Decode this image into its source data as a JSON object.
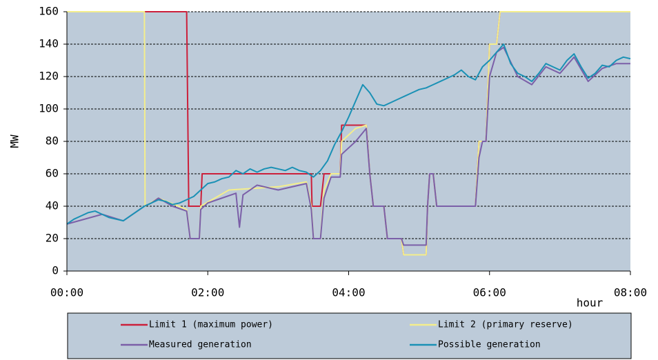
{
  "chart_data": {
    "type": "line",
    "xlabel": "hour",
    "ylabel": "MW",
    "xlim": [
      0,
      8
    ],
    "xticks": [
      {
        "value": 0,
        "label": "00:00"
      },
      {
        "value": 2,
        "label": "02:00"
      },
      {
        "value": 4,
        "label": "04:00"
      },
      {
        "value": 6,
        "label": "06:00"
      },
      {
        "value": 8,
        "label": "08:00"
      }
    ],
    "ylim": [
      0,
      160
    ],
    "yticks": [
      0,
      20,
      40,
      60,
      80,
      100,
      120,
      140,
      160
    ],
    "grid": true,
    "legend": "bottom",
    "series": [
      {
        "name": "Limit 1 (maximum power)",
        "color": "#cc1f3a",
        "x": [
          0,
          1.7,
          1.73,
          1.9,
          1.92,
          3.47,
          3.48,
          3.6,
          3.65,
          3.88,
          3.9,
          4.25,
          4.3,
          4.35,
          4.5,
          4.55,
          4.75,
          4.78,
          5.1,
          5.12,
          5.15,
          5.2,
          5.25,
          5.8,
          5.85,
          5.95,
          6.0,
          6.1,
          6.15,
          8
        ],
        "values": [
          160,
          160,
          40,
          40,
          60,
          60,
          40,
          40,
          60,
          60,
          90,
          90,
          60,
          40,
          40,
          20,
          20,
          10,
          10,
          40,
          60,
          60,
          40,
          40,
          80,
          80,
          140,
          140,
          160,
          160
        ]
      },
      {
        "name": "Limit 2 (primary reserve)",
        "color": "#f4ee8c",
        "x": [
          0,
          1.1,
          1.11,
          1.3,
          1.7,
          1.75,
          1.88,
          1.9,
          2.3,
          3.0,
          3.4,
          3.47,
          3.5,
          3.6,
          3.65,
          3.75,
          3.88,
          3.9,
          4.1,
          4.25,
          4.3,
          4.35,
          4.5,
          4.55,
          4.75,
          4.78,
          5.1,
          5.12,
          5.15,
          5.2,
          5.25,
          5.8,
          5.85,
          5.95,
          6.0,
          6.1,
          6.15,
          8
        ],
        "values": [
          160,
          160,
          40,
          45,
          38,
          20,
          20,
          40,
          50,
          52,
          55,
          40,
          20,
          20,
          50,
          60,
          60,
          80,
          88,
          90,
          60,
          40,
          40,
          20,
          20,
          10,
          10,
          40,
          60,
          60,
          40,
          40,
          80,
          80,
          140,
          140,
          160,
          160
        ]
      },
      {
        "name": "Measured generation",
        "color": "#7b5fa8",
        "x": [
          0,
          0.5,
          0.8,
          1.1,
          1.2,
          1.3,
          1.5,
          1.7,
          1.75,
          1.88,
          1.9,
          2.0,
          2.2,
          2.4,
          2.45,
          2.5,
          2.7,
          3.0,
          3.4,
          3.47,
          3.5,
          3.6,
          3.65,
          3.75,
          3.88,
          3.9,
          4.1,
          4.25,
          4.3,
          4.35,
          4.5,
          4.55,
          4.75,
          4.78,
          5.1,
          5.12,
          5.15,
          5.2,
          5.25,
          5.8,
          5.85,
          5.9,
          5.95,
          6.0,
          6.1,
          6.2,
          6.4,
          6.6,
          6.8,
          7.0,
          7.2,
          7.4,
          7.6,
          7.8,
          8.0
        ],
        "values": [
          29,
          35,
          31,
          40,
          42,
          45,
          40,
          37,
          20,
          20,
          38,
          42,
          45,
          48,
          27,
          47,
          53,
          50,
          54,
          38,
          20,
          20,
          45,
          58,
          58,
          72,
          80,
          88,
          60,
          40,
          40,
          20,
          20,
          16,
          16,
          40,
          60,
          60,
          40,
          40,
          70,
          80,
          80,
          120,
          135,
          138,
          120,
          115,
          126,
          122,
          132,
          117,
          125,
          128,
          128
        ]
      },
      {
        "name": "Possible generation",
        "color": "#1a91b5",
        "x": [
          0,
          0.1,
          0.2,
          0.3,
          0.4,
          0.5,
          0.6,
          0.7,
          0.8,
          0.9,
          1.0,
          1.1,
          1.2,
          1.3,
          1.4,
          1.5,
          1.6,
          1.7,
          1.8,
          1.9,
          2.0,
          2.1,
          2.2,
          2.3,
          2.4,
          2.5,
          2.6,
          2.7,
          2.8,
          2.9,
          3.0,
          3.1,
          3.2,
          3.3,
          3.4,
          3.5,
          3.6,
          3.7,
          3.8,
          3.9,
          4.0,
          4.1,
          4.2,
          4.3,
          4.4,
          4.5,
          4.6,
          4.7,
          4.8,
          4.9,
          5.0,
          5.1,
          5.2,
          5.3,
          5.4,
          5.5,
          5.6,
          5.7,
          5.8,
          5.9,
          6.0,
          6.1,
          6.2,
          6.3,
          6.4,
          6.5,
          6.6,
          6.7,
          6.8,
          6.9,
          7.0,
          7.1,
          7.2,
          7.3,
          7.4,
          7.5,
          7.6,
          7.7,
          7.8,
          7.9,
          8.0
        ],
        "values": [
          29,
          32,
          34,
          36,
          37,
          35,
          33,
          32,
          31,
          34,
          37,
          40,
          42,
          44,
          43,
          41,
          42,
          44,
          46,
          50,
          54,
          55,
          57,
          58,
          62,
          60,
          63,
          61,
          63,
          64,
          63,
          62,
          64,
          62,
          61,
          58,
          62,
          68,
          78,
          86,
          95,
          105,
          115,
          110,
          103,
          102,
          104,
          106,
          108,
          110,
          112,
          113,
          115,
          117,
          119,
          121,
          124,
          120,
          118,
          126,
          130,
          135,
          140,
          128,
          122,
          120,
          117,
          122,
          128,
          126,
          124,
          130,
          134,
          126,
          119,
          122,
          127,
          126,
          130,
          132,
          131
        ]
      }
    ]
  }
}
